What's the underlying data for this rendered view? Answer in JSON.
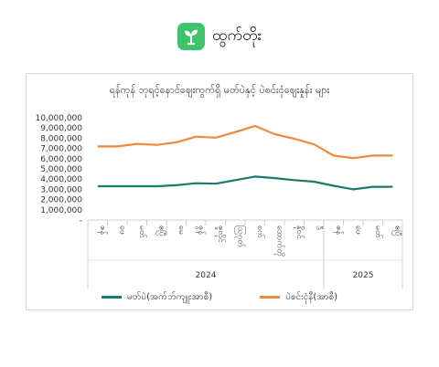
{
  "brand": {
    "name": "ထွက်တိုး"
  },
  "colors": {
    "brand_green": "#3ec46d",
    "retail": "#1b7a6e",
    "wholesale": "#ef8a3c"
  },
  "chart_data": {
    "type": "line",
    "title": "ရန်ကုန် ဘုရင့်နောင်ဈေးကွက်ရှိ မတ်ပဲနှင့် ပဲစင်းငုံဈေးနှုန်း များ",
    "xlabel": "",
    "ylabel": "",
    "ylim": [
      0,
      10000000
    ],
    "yticks": [
      "-",
      "1,000,000",
      "2,000,000",
      "3,000,000",
      "4,000,000",
      "5,000,000",
      "6,000,000",
      "7,000,000",
      "8,000,000",
      "9,000,000",
      "10,000,000"
    ],
    "categories": [
      "ဇန်",
      "ဖေ",
      "မတ်",
      "ဧပြီ",
      "မေ",
      "ဇွန်",
      "ဇူလိုင်",
      "ဩဂုတ်",
      "စက်",
      "အောက်တို",
      "နိုဝင်",
      "ဒီ",
      "ဇန်",
      "ဖေ",
      "မတ်",
      "ဧပြီ"
    ],
    "years": [
      {
        "label": "2024",
        "span": 12
      },
      {
        "label": "2025",
        "span": 4
      }
    ],
    "grid": false,
    "legend": "bottom",
    "series": [
      {
        "name": "မတ်ပဲ(အက်ဘ်ကျူးအာစီ)",
        "color": "#1b7a6e",
        "values": [
          3300000,
          3300000,
          3300000,
          3300000,
          3400000,
          3600000,
          3550000,
          3900000,
          4250000,
          4100000,
          3900000,
          3750000,
          3350000,
          3000000,
          3250000,
          3250000
        ]
      },
      {
        "name": "ပဲစင်းငုံနီ(အာစီ)",
        "color": "#ef8a3c",
        "values": [
          7200000,
          7200000,
          7450000,
          7350000,
          7600000,
          8150000,
          8050000,
          8600000,
          9200000,
          8400000,
          7950000,
          7400000,
          6300000,
          6050000,
          6300000,
          6300000
        ]
      }
    ]
  }
}
